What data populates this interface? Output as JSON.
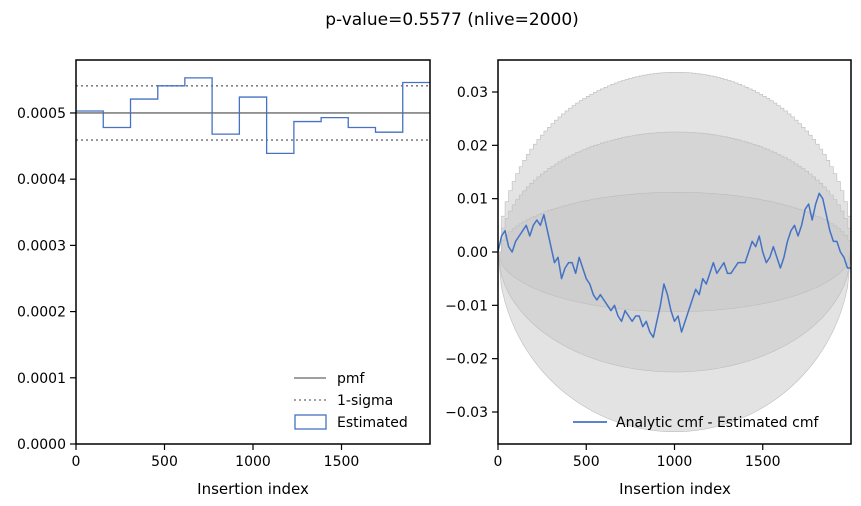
{
  "figure": {
    "suptitle": "p-value=0.5577 (nlive=2000)"
  },
  "chart_data": [
    {
      "type": "line",
      "panel": "left",
      "xlabel": "Insertion index",
      "ylabel": "",
      "xlim": [
        0,
        2000
      ],
      "ylim": [
        0,
        0.00058
      ],
      "xticks": [
        0,
        500,
        1000,
        1500
      ],
      "xtick_labels": [
        "0",
        "500",
        "1000",
        "1500"
      ],
      "yticks": [
        0,
        0.0001,
        0.0002,
        0.0003,
        0.0004,
        0.0005
      ],
      "ytick_labels": [
        "0.0000",
        "0.0001",
        "0.0002",
        "0.0003",
        "0.0004",
        "0.0005"
      ],
      "grid": false,
      "legend_position": "lower-right",
      "pmf": 0.0005,
      "sigma_band": [
        0.000459,
        0.000541
      ],
      "histogram": {
        "bin_edges": [
          0,
          154,
          308,
          462,
          615,
          769,
          923,
          1077,
          1231,
          1385,
          1538,
          1692,
          1846,
          2000
        ],
        "values": [
          0.000503,
          0.000478,
          0.000521,
          0.000541,
          0.000553,
          0.000468,
          0.000524,
          0.000439,
          0.000487,
          0.000493,
          0.000478,
          0.000471,
          0.000546
        ]
      },
      "series": [
        {
          "name": "pmf",
          "color": "#808080",
          "style": "solid"
        },
        {
          "name": "1-sigma",
          "color": "#808080",
          "style": "dotted"
        },
        {
          "name": "Estimated",
          "color": "#4472c4",
          "style": "step"
        }
      ]
    },
    {
      "type": "line",
      "panel": "right",
      "xlabel": "Insertion index",
      "ylabel": "",
      "xlim": [
        0,
        2000
      ],
      "ylim": [
        -0.036,
        0.036
      ],
      "xticks": [
        0,
        500,
        1000,
        1500
      ],
      "xtick_labels": [
        "0",
        "500",
        "1000",
        "1500"
      ],
      "yticks": [
        -0.03,
        -0.02,
        -0.01,
        0.0,
        0.01,
        0.02,
        0.03
      ],
      "ytick_labels": [
        "−0.03",
        "−0.02",
        "−0.01",
        "0.00",
        "0.01",
        "0.02",
        "0.03"
      ],
      "grid": false,
      "legend_position": "lower-right",
      "sigma_band_amplitudes": [
        0.0112,
        0.0225,
        0.0337
      ],
      "band_color": "#c8c8c8",
      "series": [
        {
          "name": "Analytic cmf - Estimated cmf",
          "color": "#4472c4",
          "x": [
            0,
            20,
            40,
            60,
            80,
            100,
            120,
            140,
            160,
            180,
            200,
            220,
            240,
            260,
            280,
            300,
            320,
            340,
            360,
            380,
            400,
            420,
            440,
            460,
            480,
            500,
            520,
            540,
            560,
            580,
            600,
            620,
            640,
            660,
            680,
            700,
            720,
            740,
            760,
            780,
            800,
            820,
            840,
            860,
            880,
            900,
            920,
            940,
            960,
            980,
            1000,
            1020,
            1040,
            1060,
            1080,
            1100,
            1120,
            1140,
            1160,
            1180,
            1200,
            1220,
            1240,
            1260,
            1280,
            1300,
            1320,
            1340,
            1360,
            1380,
            1400,
            1420,
            1440,
            1460,
            1480,
            1500,
            1520,
            1540,
            1560,
            1580,
            1600,
            1620,
            1640,
            1660,
            1680,
            1700,
            1720,
            1740,
            1760,
            1780,
            1800,
            1820,
            1840,
            1860,
            1880,
            1900,
            1920,
            1940,
            1960,
            1980,
            2000
          ],
          "values": [
            0.0,
            0.003,
            0.004,
            0.001,
            0.0,
            0.002,
            0.003,
            0.004,
            0.005,
            0.003,
            0.005,
            0.006,
            0.005,
            0.007,
            0.004,
            0.001,
            -0.002,
            -0.001,
            -0.005,
            -0.003,
            -0.002,
            -0.002,
            -0.004,
            -0.001,
            -0.003,
            -0.005,
            -0.006,
            -0.008,
            -0.009,
            -0.008,
            -0.009,
            -0.01,
            -0.011,
            -0.01,
            -0.012,
            -0.013,
            -0.011,
            -0.012,
            -0.013,
            -0.012,
            -0.012,
            -0.014,
            -0.013,
            -0.015,
            -0.016,
            -0.013,
            -0.01,
            -0.006,
            -0.008,
            -0.011,
            -0.013,
            -0.012,
            -0.015,
            -0.013,
            -0.011,
            -0.009,
            -0.007,
            -0.008,
            -0.005,
            -0.006,
            -0.004,
            -0.002,
            -0.004,
            -0.003,
            -0.002,
            -0.004,
            -0.004,
            -0.003,
            -0.002,
            -0.002,
            -0.002,
            0.0,
            0.002,
            0.001,
            0.003,
            0.0,
            -0.002,
            -0.001,
            0.001,
            -0.001,
            -0.003,
            -0.001,
            0.002,
            0.004,
            0.005,
            0.003,
            0.005,
            0.008,
            0.009,
            0.006,
            0.009,
            0.011,
            0.01,
            0.007,
            0.004,
            0.002,
            0.002,
            0.0,
            -0.001,
            -0.003,
            -0.003
          ]
        }
      ]
    }
  ]
}
